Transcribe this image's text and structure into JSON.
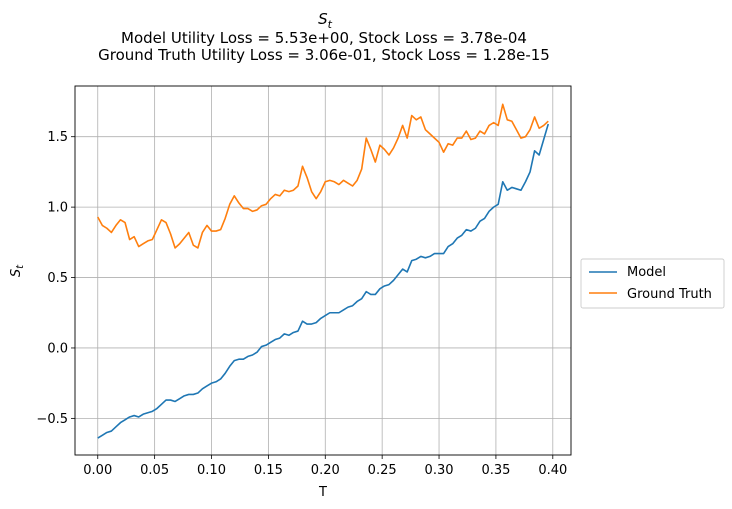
{
  "chart_data": {
    "type": "line",
    "title_lines": [
      "S",
      "Model Utility Loss = 5.53e+00, Stock Loss = 3.78e-04",
      "Ground Truth Utility Loss = 3.06e-01, Stock Loss = 1.28e-15"
    ],
    "title_subscript": "t",
    "xlabel": "T",
    "ylabel": "S",
    "ylabel_subscript": "t",
    "xlim": [
      -0.02,
      0.416
    ],
    "ylim": [
      -0.76,
      1.86
    ],
    "xticks": [
      0.0,
      0.05,
      0.1,
      0.15,
      0.2,
      0.25,
      0.3,
      0.35,
      0.4
    ],
    "xtick_labels": [
      "0.00",
      "0.05",
      "0.10",
      "0.15",
      "0.20",
      "0.25",
      "0.30",
      "0.35",
      "0.40"
    ],
    "yticks": [
      -0.5,
      0.0,
      0.5,
      1.0,
      1.5
    ],
    "ytick_labels": [
      "−0.5",
      "0.0",
      "0.5",
      "1.0",
      "1.5"
    ],
    "grid": true,
    "legend_position": "outside-right",
    "series": [
      {
        "name": "Model",
        "color": "#1f77b4",
        "x": [
          0.0,
          0.004,
          0.008,
          0.012,
          0.016,
          0.02,
          0.024,
          0.028,
          0.032,
          0.036,
          0.04,
          0.044,
          0.048,
          0.052,
          0.056,
          0.06,
          0.064,
          0.068,
          0.072,
          0.076,
          0.08,
          0.084,
          0.088,
          0.092,
          0.096,
          0.1,
          0.104,
          0.108,
          0.112,
          0.116,
          0.12,
          0.124,
          0.128,
          0.132,
          0.136,
          0.14,
          0.144,
          0.148,
          0.152,
          0.156,
          0.16,
          0.164,
          0.168,
          0.172,
          0.176,
          0.18,
          0.184,
          0.188,
          0.192,
          0.196,
          0.2,
          0.204,
          0.208,
          0.212,
          0.216,
          0.22,
          0.224,
          0.228,
          0.232,
          0.236,
          0.24,
          0.244,
          0.248,
          0.252,
          0.256,
          0.26,
          0.264,
          0.268,
          0.272,
          0.276,
          0.28,
          0.284,
          0.288,
          0.292,
          0.296,
          0.3,
          0.304,
          0.308,
          0.312,
          0.316,
          0.32,
          0.324,
          0.328,
          0.332,
          0.336,
          0.34,
          0.344,
          0.348,
          0.352,
          0.356,
          0.36,
          0.364,
          0.368,
          0.372,
          0.376,
          0.38,
          0.384,
          0.388,
          0.392,
          0.396
        ],
        "y": [
          -0.64,
          -0.62,
          -0.6,
          -0.59,
          -0.56,
          -0.53,
          -0.51,
          -0.49,
          -0.48,
          -0.49,
          -0.47,
          -0.46,
          -0.45,
          -0.43,
          -0.4,
          -0.37,
          -0.37,
          -0.38,
          -0.36,
          -0.34,
          -0.33,
          -0.33,
          -0.32,
          -0.29,
          -0.27,
          -0.25,
          -0.24,
          -0.22,
          -0.18,
          -0.13,
          -0.09,
          -0.08,
          -0.08,
          -0.06,
          -0.05,
          -0.03,
          0.01,
          0.02,
          0.04,
          0.06,
          0.07,
          0.1,
          0.09,
          0.11,
          0.12,
          0.19,
          0.17,
          0.17,
          0.18,
          0.21,
          0.23,
          0.25,
          0.25,
          0.25,
          0.27,
          0.29,
          0.3,
          0.33,
          0.35,
          0.4,
          0.38,
          0.38,
          0.42,
          0.44,
          0.45,
          0.48,
          0.52,
          0.56,
          0.54,
          0.62,
          0.63,
          0.65,
          0.64,
          0.65,
          0.67,
          0.67,
          0.67,
          0.72,
          0.74,
          0.78,
          0.8,
          0.84,
          0.83,
          0.85,
          0.9,
          0.92,
          0.97,
          1.0,
          1.02,
          1.18,
          1.12,
          1.14,
          1.13,
          1.12,
          1.18,
          1.25,
          1.4,
          1.37,
          1.48,
          1.59
        ]
      },
      {
        "name": "Ground Truth",
        "color": "#ff7f0e",
        "x": [
          0.0,
          0.004,
          0.008,
          0.012,
          0.016,
          0.02,
          0.024,
          0.028,
          0.032,
          0.036,
          0.04,
          0.044,
          0.048,
          0.052,
          0.056,
          0.06,
          0.064,
          0.068,
          0.072,
          0.076,
          0.08,
          0.084,
          0.088,
          0.092,
          0.096,
          0.1,
          0.104,
          0.108,
          0.112,
          0.116,
          0.12,
          0.124,
          0.128,
          0.132,
          0.136,
          0.14,
          0.144,
          0.148,
          0.152,
          0.156,
          0.16,
          0.164,
          0.168,
          0.172,
          0.176,
          0.18,
          0.184,
          0.188,
          0.192,
          0.196,
          0.2,
          0.204,
          0.208,
          0.212,
          0.216,
          0.22,
          0.224,
          0.228,
          0.232,
          0.236,
          0.24,
          0.244,
          0.248,
          0.252,
          0.256,
          0.26,
          0.264,
          0.268,
          0.272,
          0.276,
          0.28,
          0.284,
          0.288,
          0.292,
          0.296,
          0.3,
          0.304,
          0.308,
          0.312,
          0.316,
          0.32,
          0.324,
          0.328,
          0.332,
          0.336,
          0.34,
          0.344,
          0.348,
          0.352,
          0.356,
          0.36,
          0.364,
          0.368,
          0.372,
          0.376,
          0.38,
          0.384,
          0.388,
          0.392,
          0.396
        ],
        "y": [
          0.93,
          0.87,
          0.85,
          0.82,
          0.87,
          0.91,
          0.89,
          0.77,
          0.79,
          0.72,
          0.74,
          0.76,
          0.77,
          0.84,
          0.91,
          0.89,
          0.81,
          0.71,
          0.74,
          0.78,
          0.82,
          0.73,
          0.71,
          0.82,
          0.87,
          0.83,
          0.83,
          0.84,
          0.92,
          1.02,
          1.08,
          1.03,
          0.99,
          0.99,
          0.97,
          0.98,
          1.01,
          1.02,
          1.06,
          1.09,
          1.08,
          1.12,
          1.11,
          1.12,
          1.15,
          1.29,
          1.21,
          1.11,
          1.06,
          1.11,
          1.18,
          1.19,
          1.18,
          1.16,
          1.19,
          1.17,
          1.15,
          1.19,
          1.27,
          1.49,
          1.41,
          1.32,
          1.44,
          1.41,
          1.37,
          1.42,
          1.49,
          1.58,
          1.49,
          1.65,
          1.62,
          1.64,
          1.55,
          1.52,
          1.49,
          1.46,
          1.39,
          1.45,
          1.44,
          1.49,
          1.49,
          1.54,
          1.48,
          1.49,
          1.54,
          1.52,
          1.58,
          1.6,
          1.58,
          1.73,
          1.62,
          1.61,
          1.55,
          1.49,
          1.5,
          1.55,
          1.64,
          1.56,
          1.58,
          1.61
        ]
      }
    ]
  }
}
